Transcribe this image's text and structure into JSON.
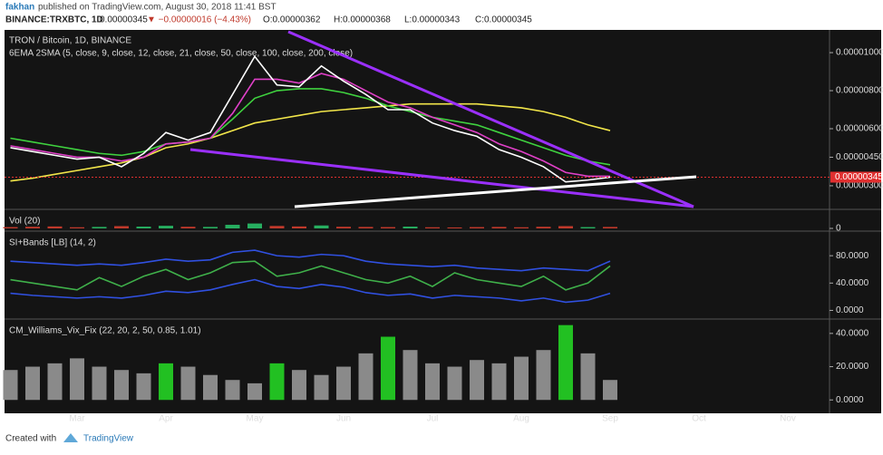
{
  "header": {
    "author": "fakhan",
    "published": "published on TradingView.com, August 30, 2018 11:41 BST",
    "symbol": "BINANCE:TRXBTC, 1D",
    "price": "0.00000345",
    "change": "▼ −0.00000016 (−4.43%)",
    "ohlc": [
      "O:0.00000362",
      "H:0.00000368",
      "L:0.00000343",
      "C:0.00000345"
    ]
  },
  "footer": {
    "created": "Created with",
    "brand": "TradingView"
  },
  "chart_data": [
    {
      "type": "line",
      "title": "TRON / Bitcoin, 1D, BINANCE",
      "subtitle": "6EMA 2SMA (5, close, 9, close, 12, close, 21, close, 50, close, 100, close, 200, close)",
      "ylim": [
        1.9e-06,
        1.11e-05
      ],
      "yticks": [
        {
          "value": 3e-06,
          "label": "0.00000300"
        },
        {
          "value": 4.5e-06,
          "label": "0.00000450"
        },
        {
          "value": 6e-06,
          "label": "0.00000600"
        },
        {
          "value": 8e-06,
          "label": "0.00000800"
        },
        {
          "value": 1e-05,
          "label": "0.00001000"
        }
      ],
      "last_price": {
        "value": 3.45e-06,
        "label": "0.00000345"
      },
      "series": [
        {
          "color": "#f2e64a",
          "values": [
            3.25e-06,
            3.4e-06,
            3.6e-06,
            3.8e-06,
            4e-06,
            4.2e-06,
            4.5e-06,
            5e-06,
            5.2e-06,
            5.5e-06,
            5.9e-06,
            6.3e-06,
            6.5e-06,
            6.7e-06,
            6.9e-06,
            7e-06,
            7.1e-06,
            7.2e-06,
            7.3e-06,
            7.3e-06,
            7.3e-06,
            7.3e-06,
            7.2e-06,
            7.1e-06,
            6.9e-06,
            6.6e-06,
            6.2e-06,
            5.9e-06,
            null,
            null,
            null,
            null,
            null,
            null,
            null,
            null,
            null
          ]
        },
        {
          "color": "#3fd23f",
          "values": [
            5.5e-06,
            5.3e-06,
            5.1e-06,
            4.9e-06,
            4.7e-06,
            4.6e-06,
            4.8e-06,
            5.2e-06,
            5.3e-06,
            5.5e-06,
            6.5e-06,
            7.6e-06,
            8e-06,
            8.1e-06,
            8.1e-06,
            7.9e-06,
            7.6e-06,
            7.2e-06,
            6.9e-06,
            6.6e-06,
            6.4e-06,
            6.2e-06,
            5.8e-06,
            5.4e-06,
            5e-06,
            4.6e-06,
            4.3e-06,
            4.1e-06,
            null,
            null,
            null,
            null,
            null,
            null,
            null,
            null,
            null
          ]
        },
        {
          "color": "#e040c8",
          "values": [
            5.1e-06,
            4.9e-06,
            4.7e-06,
            4.5e-06,
            4.5e-06,
            4.3e-06,
            4.5e-06,
            5.2e-06,
            5.3e-06,
            5.5e-06,
            6.8e-06,
            8.6e-06,
            8.6e-06,
            8.4e-06,
            8.9e-06,
            8.6e-06,
            8e-06,
            7.4e-06,
            7.1e-06,
            6.6e-06,
            6.2e-06,
            5.8e-06,
            5.2e-06,
            4.8e-06,
            4.3e-06,
            3.7e-06,
            3.5e-06,
            3.5e-06,
            null,
            null,
            null,
            null,
            null,
            null,
            null,
            null,
            null
          ]
        },
        {
          "color": "#ffffff",
          "values": [
            5e-06,
            4.8e-06,
            4.6e-06,
            4.4e-06,
            4.5e-06,
            4e-06,
            4.7e-06,
            5.8e-06,
            5.4e-06,
            5.8e-06,
            7.8e-06,
            9.8e-06,
            8.3e-06,
            8.2e-06,
            9.3e-06,
            8.5e-06,
            7.8e-06,
            7e-06,
            7e-06,
            6.3e-06,
            5.9e-06,
            5.6e-06,
            4.9e-06,
            4.5e-06,
            4e-06,
            3.2e-06,
            3.3e-06,
            3.45e-06,
            null,
            null,
            null,
            null,
            null,
            null,
            null,
            null,
            null
          ]
        }
      ]
    },
    {
      "type": "bar",
      "title": "Vol (20)",
      "ylim": [
        0,
        100
      ],
      "yticks": [
        0
      ],
      "values": [
        8,
        10,
        12,
        7,
        9,
        14,
        11,
        16,
        10,
        9,
        22,
        30,
        15,
        12,
        18,
        10,
        9,
        8,
        11,
        7,
        6,
        8,
        9,
        7,
        10,
        14,
        8,
        9,
        null,
        null,
        null,
        null,
        null,
        null,
        null,
        null,
        null
      ],
      "colors": [
        "#c0392b",
        "#c0392b",
        "#c0392b",
        "#c0392b",
        "#27ae60",
        "#c0392b",
        "#27ae60",
        "#27ae60",
        "#c0392b",
        "#27ae60",
        "#27ae60",
        "#27ae60",
        "#c0392b",
        "#c0392b",
        "#27ae60",
        "#c0392b",
        "#c0392b",
        "#c0392b",
        "#27ae60",
        "#c0392b",
        "#c0392b",
        "#c0392b",
        "#c0392b",
        "#c0392b",
        "#c0392b",
        "#c0392b",
        "#27ae60",
        "#c0392b",
        null,
        null,
        null,
        null,
        null,
        null,
        null,
        null,
        null
      ]
    },
    {
      "type": "line",
      "title": "SI+Bands [LB] (14, 2)",
      "ylim": [
        -10,
        112
      ],
      "yticks": [
        {
          "value": 0,
          "label": "0.0000"
        },
        {
          "value": 40,
          "label": "40.0000"
        },
        {
          "value": 80,
          "label": "80.0000"
        }
      ],
      "series": [
        {
          "color": "#3050e0",
          "values": [
            72,
            70,
            68,
            66,
            68,
            66,
            70,
            75,
            72,
            74,
            85,
            88,
            80,
            78,
            82,
            80,
            72,
            68,
            66,
            64,
            66,
            62,
            60,
            58,
            62,
            60,
            58,
            72,
            null,
            null,
            null,
            null,
            null,
            null,
            null,
            null,
            null
          ]
        },
        {
          "color": "#3050e0",
          "values": [
            25,
            22,
            20,
            18,
            20,
            18,
            22,
            28,
            26,
            30,
            38,
            45,
            35,
            32,
            38,
            34,
            26,
            22,
            24,
            18,
            22,
            20,
            18,
            14,
            18,
            12,
            15,
            25,
            null,
            null,
            null,
            null,
            null,
            null,
            null,
            null,
            null
          ]
        },
        {
          "color": "#3fb04a",
          "values": [
            45,
            40,
            35,
            30,
            48,
            35,
            50,
            60,
            45,
            55,
            70,
            72,
            50,
            55,
            65,
            55,
            45,
            40,
            50,
            35,
            55,
            45,
            40,
            35,
            50,
            30,
            40,
            65,
            null,
            null,
            null,
            null,
            null,
            null,
            null,
            null,
            null
          ]
        }
      ]
    },
    {
      "type": "bar",
      "title": "CM_Williams_Vix_Fix (22, 20, 2, 50, 0.85, 1.01)",
      "ylim": [
        -7.5,
        47
      ],
      "yticks": [
        {
          "value": 0,
          "label": "0.0000"
        },
        {
          "value": 20,
          "label": "20.0000"
        },
        {
          "value": 40,
          "label": "40.0000"
        }
      ],
      "categories": [
        null,
        null,
        null,
        "Mar",
        null,
        null,
        null,
        "Apr",
        null,
        null,
        null,
        "May",
        null,
        null,
        null,
        "Jun",
        null,
        null,
        null,
        "Jul",
        null,
        null,
        null,
        "Aug",
        null,
        null,
        null,
        "Sep",
        null,
        null,
        null,
        "Oct",
        null,
        null,
        null,
        "Nov",
        null
      ],
      "values": [
        18,
        20,
        22,
        25,
        20,
        18,
        16,
        22,
        20,
        15,
        12,
        10,
        22,
        18,
        15,
        20,
        28,
        38,
        30,
        22,
        20,
        24,
        22,
        26,
        30,
        45,
        28,
        12,
        null,
        null,
        null,
        null,
        null,
        null,
        null,
        null,
        null
      ],
      "colors": [
        "#8a8a8a",
        "#8a8a8a",
        "#8a8a8a",
        "#8a8a8a",
        "#8a8a8a",
        "#8a8a8a",
        "#8a8a8a",
        "#22c022",
        "#8a8a8a",
        "#8a8a8a",
        "#8a8a8a",
        "#8a8a8a",
        "#22c022",
        "#8a8a8a",
        "#8a8a8a",
        "#8a8a8a",
        "#8a8a8a",
        "#22c022",
        "#8a8a8a",
        "#8a8a8a",
        "#8a8a8a",
        "#8a8a8a",
        "#8a8a8a",
        "#8a8a8a",
        "#8a8a8a",
        "#22c022",
        "#8a8a8a",
        "#8a8a8a",
        null,
        null,
        null,
        null,
        null,
        null,
        null,
        null,
        null
      ]
    }
  ]
}
